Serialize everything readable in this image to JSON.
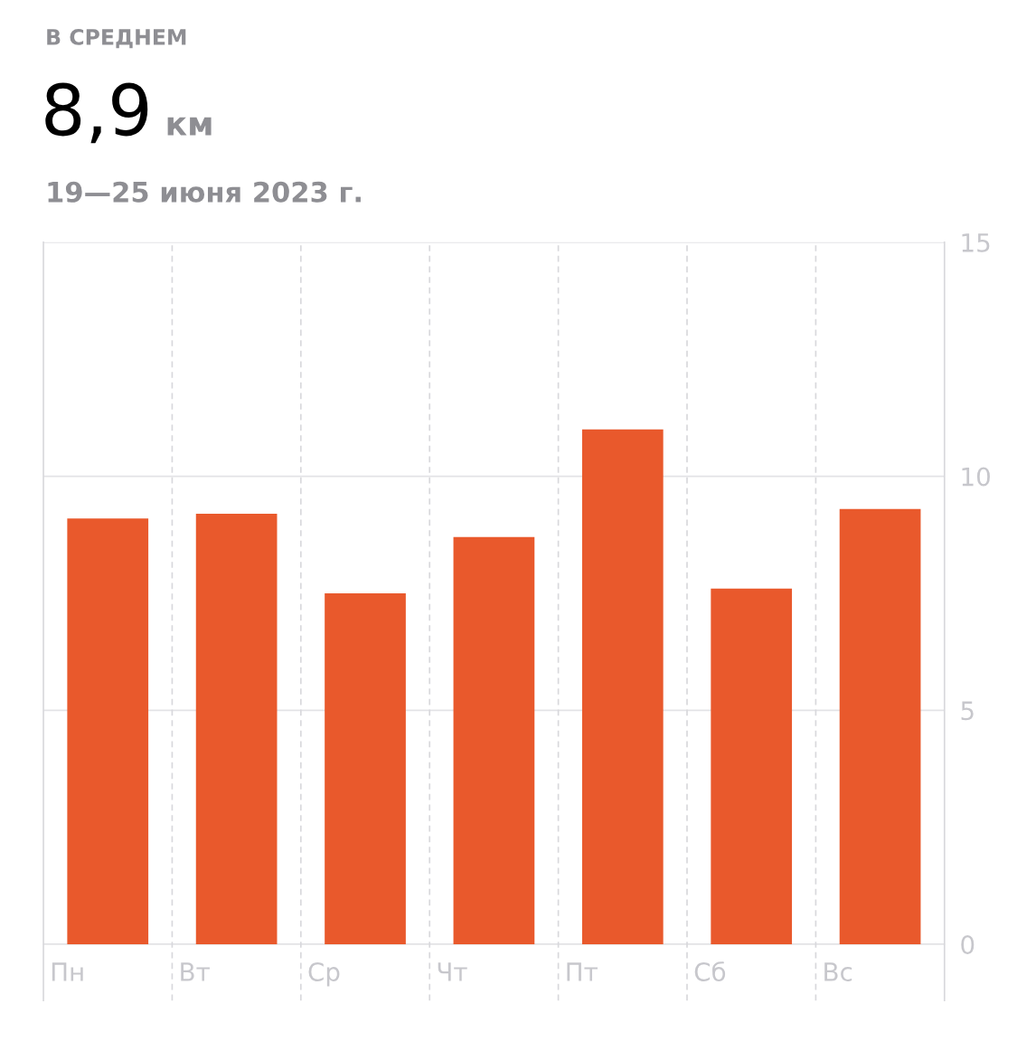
{
  "chart_data": {
    "type": "bar",
    "title": "В СРЕДНЕМ",
    "subtitle": "19—25 июня 2023 г.",
    "annotations": [
      "8,9",
      "км"
    ],
    "categories": [
      "Пн",
      "Вт",
      "Ср",
      "Чт",
      "Пт",
      "Сб",
      "Вс"
    ],
    "values": [
      9.1,
      9.2,
      7.5,
      8.7,
      11.0,
      7.6,
      9.3
    ],
    "color": "#e9592c",
    "ylim": [
      0,
      15
    ],
    "yticks": [
      0,
      5,
      10,
      15
    ],
    "grid": "y"
  }
}
